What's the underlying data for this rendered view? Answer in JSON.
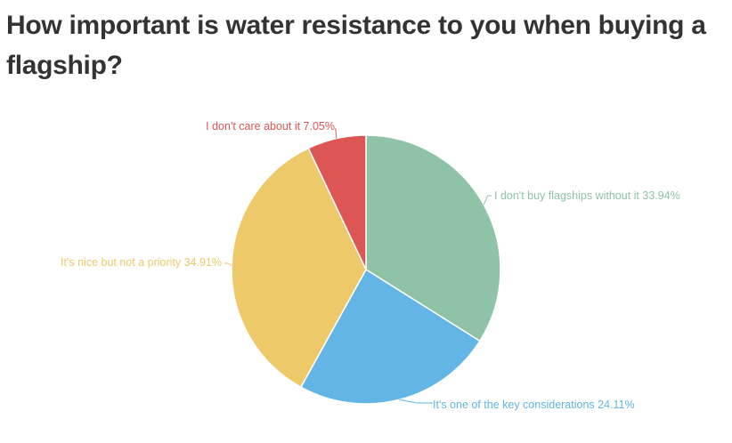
{
  "chart_data": {
    "type": "pie",
    "title": "How important is water resistance to you when buying a flagship?",
    "slices": [
      {
        "label": "I don't buy flagships without it 33.94%",
        "value": 33.94,
        "color": "#8fc3a7"
      },
      {
        "label": "It's one of the key considerations 24.11%",
        "value": 24.11,
        "color": "#62b5e5"
      },
      {
        "label": "It's nice but not a priority 34.91%",
        "value": 34.91,
        "color": "#eec969"
      },
      {
        "label": "I don't care about it 7.05%",
        "value": 7.05,
        "color": "#dd5555"
      }
    ]
  }
}
